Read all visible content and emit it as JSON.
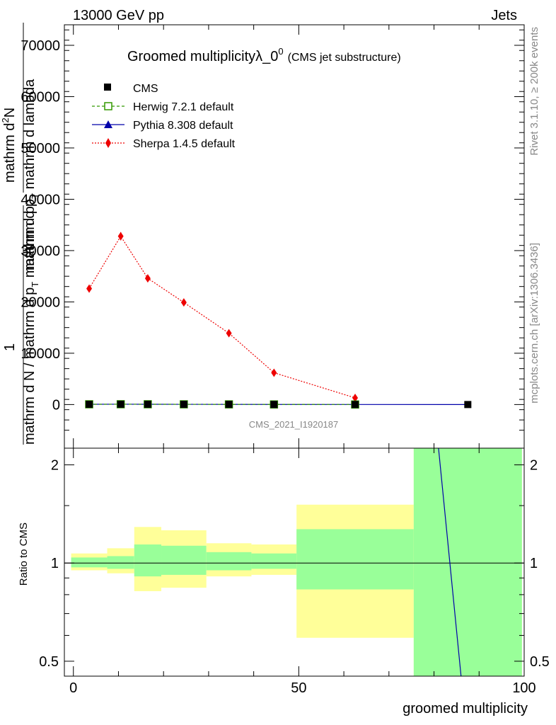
{
  "header": {
    "left": "13000 GeV pp",
    "right": "Jets"
  },
  "title": {
    "main": "Groomed multiplicity",
    "lambda": "λ_0",
    "sup": "0",
    "sub": "(CMS jet substructure)"
  },
  "side": {
    "rivet": "Rivet 3.1.10, ≥ 200k events",
    "site": "mcplots.cern.ch [arXiv:1306.3436]"
  },
  "watermark": "CMS_2021_I1920187",
  "ylabel_main": {
    "top_num": "mathrm d",
    "top_num_sup": "2",
    "top_num2": "N",
    "top_den": "mathrm d p",
    "top_den_sub": "T",
    "top_den2": " mathrm d lambda",
    "one": "1",
    "bot": "mathrm d N / mathrm d p",
    "bot_sub": "T",
    "bot2": " mathrm d p"
  },
  "ylabel_ratio": "Ratio to CMS",
  "xlabel": "groomed multiplicity",
  "legend": [
    {
      "label": "CMS",
      "color": "#000000"
    },
    {
      "label": "Herwig 7.2.1 default",
      "color": "#339900"
    },
    {
      "label": "Pythia 8.308 default",
      "color": "#0000aa"
    },
    {
      "label": "Sherpa 1.4.5 default",
      "color": "#ee0000"
    }
  ],
  "chart_data": [
    {
      "type": "line",
      "panel": "main",
      "x_range": [
        -2,
        100
      ],
      "ylim": [
        -8500,
        74000
      ],
      "y_ticks": [
        0,
        10000,
        20000,
        30000,
        40000,
        50000,
        60000,
        70000
      ],
      "y_tick_labels": [
        "0",
        "10000",
        "20000",
        "30000",
        "40000",
        "50000",
        "60000",
        "70000"
      ],
      "x_ticks": [
        0,
        50,
        100
      ],
      "x": [
        3.5,
        10.5,
        16.5,
        24.5,
        34.5,
        44.5,
        62.5,
        87.5
      ],
      "series": [
        {
          "name": "CMS",
          "values": [
            50,
            60,
            55,
            45,
            35,
            20,
            8,
            2
          ]
        },
        {
          "name": "Herwig 7.2.1 default",
          "values": [
            52,
            62,
            57,
            46,
            36,
            21,
            9,
            null
          ]
        },
        {
          "name": "Pythia 8.308 default",
          "values": [
            51,
            61,
            56,
            46,
            35,
            20,
            8,
            2
          ]
        },
        {
          "name": "Sherpa 1.4.5 default",
          "values": [
            22600,
            32800,
            24600,
            19900,
            13900,
            6200,
            1300,
            null
          ],
          "errors": [
            600,
            800,
            700,
            300,
            300,
            300,
            250,
            null
          ]
        }
      ]
    },
    {
      "type": "area",
      "panel": "ratio",
      "x_range": [
        -2,
        100
      ],
      "ylim": [
        0.45,
        2.25
      ],
      "y_ticks": [
        0.5,
        1,
        2
      ],
      "y_tick_labels": [
        "0.5",
        "1",
        "2"
      ],
      "x_ticks": [
        0,
        50,
        100
      ],
      "x_tick_labels": [
        "0",
        "50",
        "100"
      ],
      "bins": [
        {
          "lo": -0.5,
          "hi": 7.5,
          "yellow": [
            0.95,
            1.07
          ],
          "green": [
            0.97,
            1.04
          ]
        },
        {
          "lo": 7.5,
          "hi": 13.5,
          "yellow": [
            0.93,
            1.11
          ],
          "green": [
            0.96,
            1.05
          ]
        },
        {
          "lo": 13.5,
          "hi": 19.5,
          "yellow": [
            0.82,
            1.29
          ],
          "green": [
            0.91,
            1.14
          ]
        },
        {
          "lo": 19.5,
          "hi": 29.5,
          "yellow": [
            0.84,
            1.26
          ],
          "green": [
            0.92,
            1.13
          ]
        },
        {
          "lo": 29.5,
          "hi": 39.5,
          "yellow": [
            0.91,
            1.15
          ],
          "green": [
            0.95,
            1.08
          ]
        },
        {
          "lo": 39.5,
          "hi": 49.5,
          "yellow": [
            0.92,
            1.14
          ],
          "green": [
            0.96,
            1.07
          ]
        },
        {
          "lo": 49.5,
          "hi": 75.5,
          "yellow": [
            0.59,
            1.51
          ],
          "green": [
            0.83,
            1.27
          ]
        },
        {
          "lo": 75.5,
          "hi": 99.5,
          "yellow": [
            0.3,
            2.5
          ],
          "green": [
            0.3,
            2.5
          ]
        }
      ],
      "pythia_ratio_line": {
        "x": [
          81,
          86
        ],
        "y": [
          2.4,
          0.45
        ]
      }
    }
  ]
}
